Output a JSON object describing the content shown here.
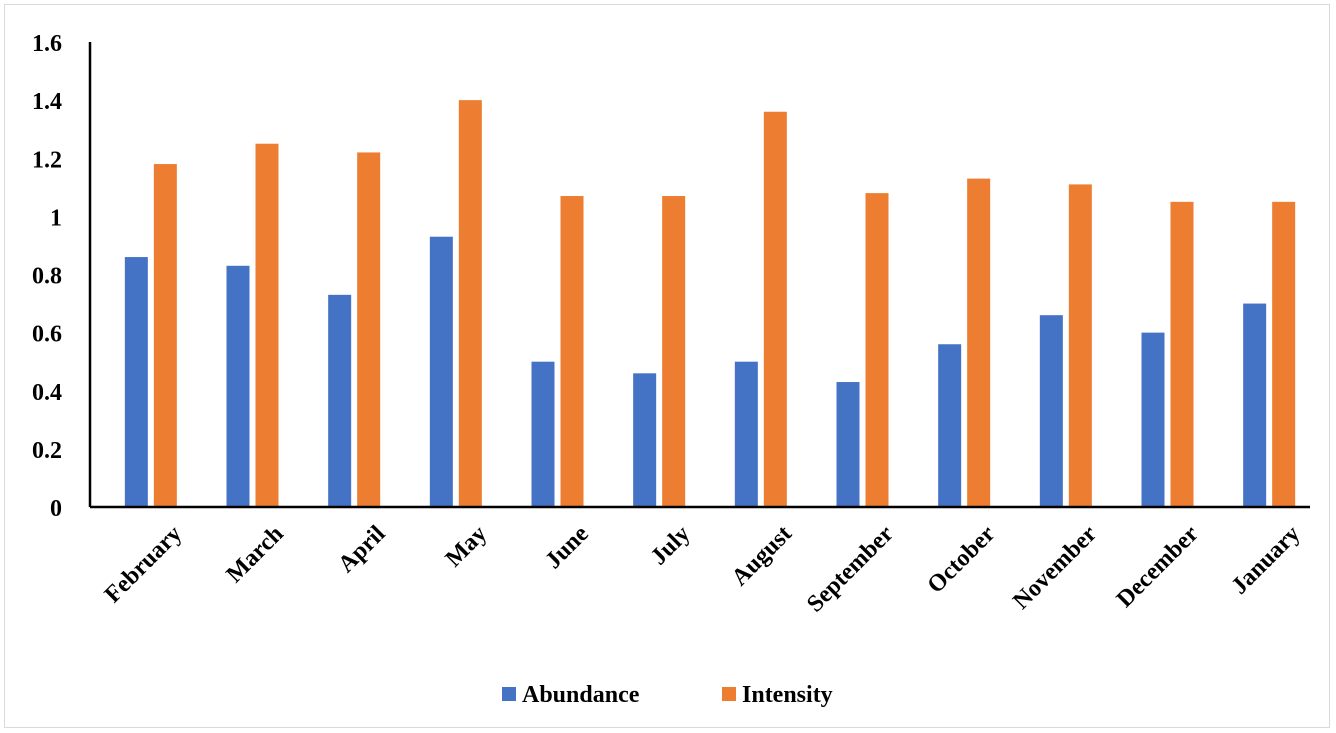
{
  "chart_data": {
    "type": "bar",
    "categories": [
      "February",
      "March",
      "April",
      "May",
      "June",
      "July",
      "August",
      "September",
      "October",
      "November",
      "December",
      "January"
    ],
    "series": [
      {
        "name": "Abundance",
        "color": "#4472C4",
        "values": [
          0.86,
          0.83,
          0.73,
          0.93,
          0.5,
          0.46,
          0.5,
          0.43,
          0.56,
          0.66,
          0.6,
          0.7
        ]
      },
      {
        "name": "Intensity",
        "color": "#ED7D31",
        "values": [
          1.18,
          1.25,
          1.22,
          1.4,
          1.07,
          1.07,
          1.36,
          1.08,
          1.13,
          1.11,
          1.05,
          1.05
        ]
      }
    ],
    "y_ticks": [
      "0",
      "0.2",
      "0.4",
      "0.6",
      "0.8",
      "1",
      "1.2",
      "1.4",
      "1.6"
    ],
    "ylim": [
      0,
      1.6
    ],
    "grid": false,
    "legend_position": "bottom-center"
  }
}
